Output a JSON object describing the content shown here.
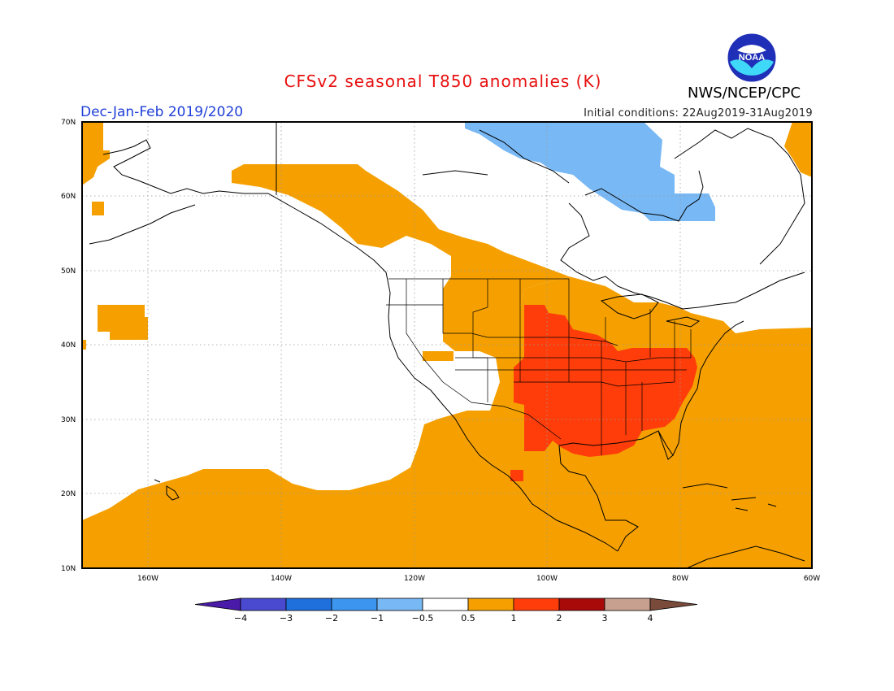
{
  "title": "CFSv2 seasonal T850 anomalies (K)",
  "agency": "NWS/NCEP/CPC",
  "logo_text": "NOAA",
  "period": "Dec-Jan-Feb 2019/2020",
  "initial_conditions": "Initial conditions: 22Aug2019-31Aug2019",
  "latitude_labels": [
    "70N",
    "60N",
    "50N",
    "40N",
    "30N",
    "20N",
    "10N"
  ],
  "longitude_labels": [
    "160W",
    "140W",
    "120W",
    "100W",
    "80W",
    "60W"
  ],
  "colorbar": {
    "labels": [
      "-4",
      "-3",
      "-2",
      "-1",
      "-0.5",
      "0.5",
      "1",
      "2",
      "3",
      "4"
    ],
    "colors": [
      "#4a1aa8",
      "#4a4ad0",
      "#1f6fdc",
      "#3c96f0",
      "#78b8f4",
      "#ffffff",
      "#f5a000",
      "#ff3d0a",
      "#a80a0a",
      "#c8a090",
      "#7a4a3a"
    ]
  },
  "chart_data": {
    "type": "heatmap",
    "title": "CFSv2 seasonal T850 anomalies (K)",
    "variable": "T850 anomaly",
    "units": "K",
    "season": "Dec-Jan-Feb 2019/2020",
    "lon_range": [
      -172,
      -60
    ],
    "lat_range": [
      10,
      70
    ],
    "grid": true,
    "levels": [
      -4,
      -3,
      -2,
      -1,
      -0.5,
      0.5,
      1,
      2,
      3,
      4
    ],
    "regions": [
      {
        "name": "southeast-us",
        "anomaly_band": "1 to 2",
        "color": "#ff3d0a"
      },
      {
        "name": "central-eastern-us-canada",
        "anomaly_band": "0.5 to 1",
        "color": "#f5a000"
      },
      {
        "name": "eastern-pacific-subtropics",
        "anomaly_band": "0.5 to 1",
        "color": "#f5a000"
      },
      {
        "name": "western-atlantic",
        "anomaly_band": "0.5 to 1",
        "color": "#f5a000"
      },
      {
        "name": "gulf-of-alaska",
        "anomaly_band": "0.5 to 1",
        "color": "#f5a000"
      },
      {
        "name": "hudson-bay-northern-canada",
        "anomaly_band": "-1 to -0.5",
        "color": "#78b8f4"
      }
    ]
  }
}
